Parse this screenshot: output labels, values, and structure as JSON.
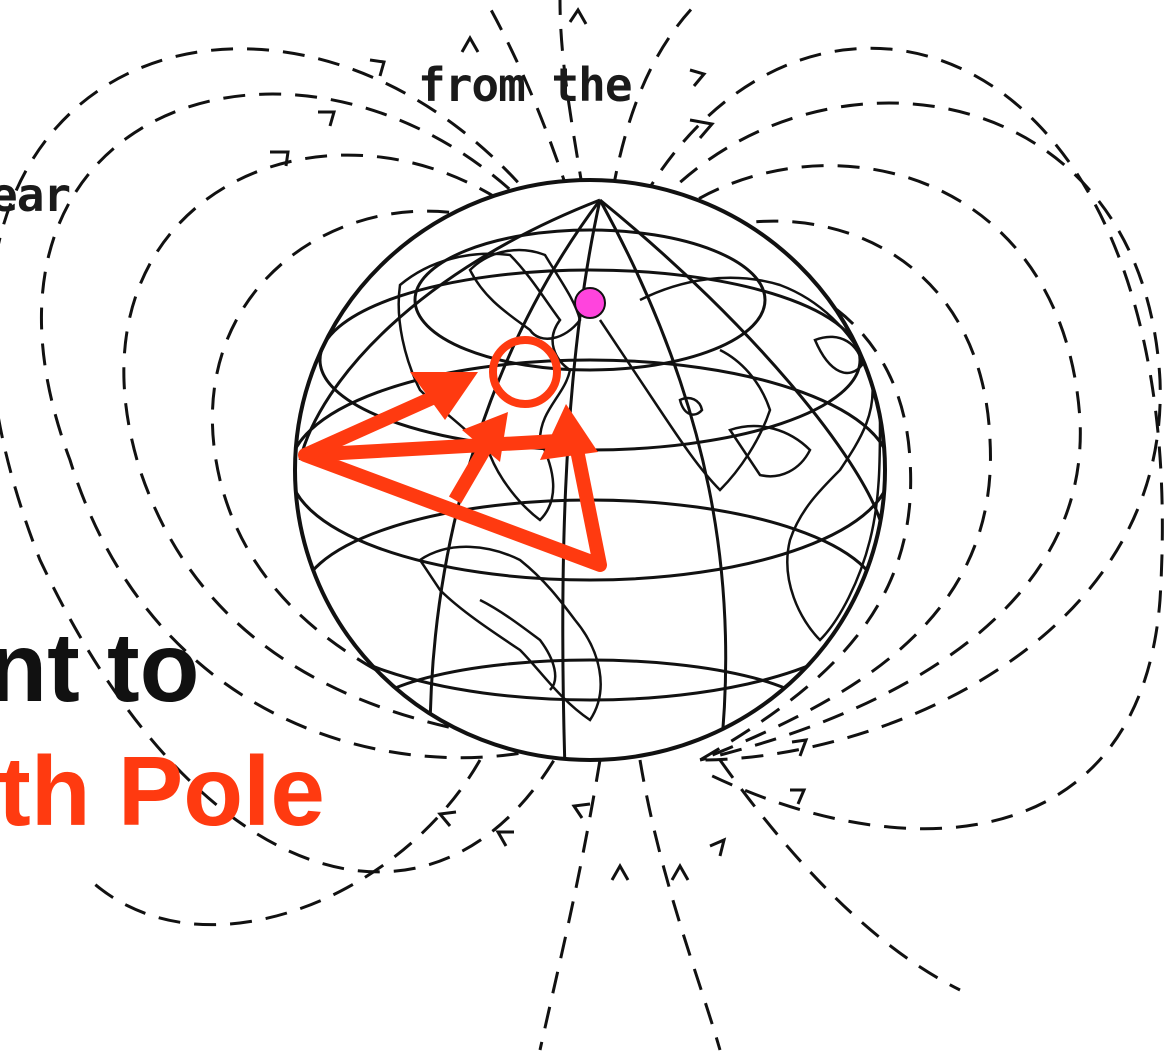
{
  "texts": {
    "line1": "from the",
    "line2": "ear",
    "line3": "int to",
    "line4": "rth Pole"
  },
  "colors": {
    "background": "#ffffff",
    "lines": "#111111",
    "arrows": "#ff3a10",
    "pole_marker": "#ff44dd",
    "highlight": "#ff3a10"
  },
  "icons": {
    "globe": "earth-globe-icon",
    "pole": "magnetic-pole-marker",
    "target": "target-circle-icon"
  }
}
